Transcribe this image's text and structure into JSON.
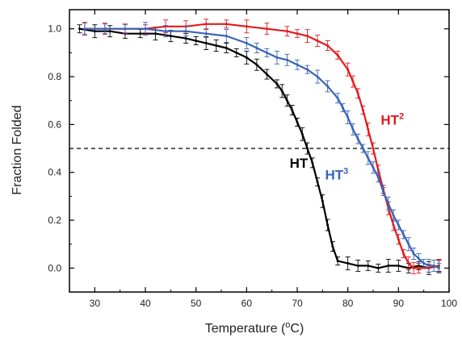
{
  "chart_data": {
    "type": "line",
    "xlabel_main": "Temperature (",
    "xlabel_sup": "o",
    "xlabel_end": "C)",
    "ylabel": "Fraction Folded",
    "xlim": [
      25,
      100
    ],
    "ylim": [
      -0.1,
      1.08
    ],
    "xticks": [
      30,
      40,
      50,
      60,
      70,
      80,
      90,
      100
    ],
    "yticks": [
      0.0,
      0.2,
      0.4,
      0.6,
      0.8,
      1.0
    ],
    "xtick_labels": [
      "30",
      "40",
      "50",
      "60",
      "70",
      "80",
      "90",
      "100"
    ],
    "ytick_labels": [
      "0.0",
      "0.2",
      "0.4",
      "0.6",
      "0.8",
      "1.0"
    ],
    "reference_line": {
      "y": 0.5,
      "style": "dashed",
      "color": "#000000"
    },
    "grid": false,
    "series": [
      {
        "name": "HT",
        "label_main": "HT",
        "label_sup": "",
        "label_at": [
          68.5,
          0.42
        ],
        "color": "#000000",
        "x": [
          27,
          30,
          33,
          36,
          39,
          42,
          45,
          48,
          50,
          52,
          54,
          56,
          58,
          60,
          62,
          64,
          66,
          67,
          68,
          69,
          70,
          71,
          72,
          73,
          74,
          75,
          76,
          77,
          78,
          80,
          82,
          84,
          86,
          88,
          90,
          92,
          94,
          96,
          98
        ],
        "y": [
          1.0,
          0.99,
          0.99,
          0.98,
          0.98,
          0.98,
          0.97,
          0.96,
          0.95,
          0.94,
          0.93,
          0.92,
          0.9,
          0.88,
          0.85,
          0.81,
          0.77,
          0.74,
          0.7,
          0.66,
          0.61,
          0.56,
          0.5,
          0.44,
          0.36,
          0.28,
          0.18,
          0.09,
          0.03,
          0.02,
          0.01,
          0.01,
          0.0,
          0.01,
          0.01,
          0.0,
          0.01,
          0.0,
          0.01
        ]
      },
      {
        "name": "HT2",
        "label_main": "HT",
        "label_sup": "2",
        "label_at": [
          86.5,
          0.6
        ],
        "color": "#e41a1c",
        "x": [
          28,
          32,
          36,
          40,
          44,
          48,
          52,
          56,
          60,
          64,
          68,
          70,
          72,
          74,
          76,
          78,
          80,
          81,
          82,
          83,
          84,
          85,
          86,
          87,
          88,
          89,
          90,
          91,
          92,
          93,
          94,
          96,
          98
        ],
        "y": [
          1.0,
          1.0,
          1.0,
          1.0,
          1.01,
          1.01,
          1.02,
          1.02,
          1.01,
          1.0,
          0.99,
          0.98,
          0.97,
          0.95,
          0.93,
          0.89,
          0.83,
          0.78,
          0.73,
          0.66,
          0.58,
          0.5,
          0.41,
          0.33,
          0.25,
          0.18,
          0.12,
          0.06,
          0.02,
          0.0,
          0.0,
          0.0,
          0.01
        ]
      },
      {
        "name": "HT3",
        "label_main": "HT",
        "label_sup": "3",
        "label_at": [
          75.5,
          0.37
        ],
        "color": "#3a63b8",
        "x": [
          28,
          32,
          36,
          40,
          44,
          48,
          52,
          56,
          60,
          62,
          64,
          66,
          68,
          70,
          72,
          74,
          76,
          78,
          79,
          80,
          81,
          82,
          83,
          84,
          85,
          86,
          87,
          88,
          89,
          90,
          91,
          92,
          93,
          94,
          95,
          96,
          97,
          98
        ],
        "y": [
          1.0,
          1.0,
          1.0,
          1.0,
          0.99,
          0.99,
          0.98,
          0.97,
          0.94,
          0.92,
          0.9,
          0.88,
          0.87,
          0.85,
          0.83,
          0.8,
          0.76,
          0.71,
          0.67,
          0.63,
          0.58,
          0.54,
          0.5,
          0.46,
          0.42,
          0.38,
          0.32,
          0.27,
          0.22,
          0.18,
          0.14,
          0.1,
          0.06,
          0.04,
          0.02,
          0.01,
          0.01,
          0.0
        ]
      }
    ]
  }
}
